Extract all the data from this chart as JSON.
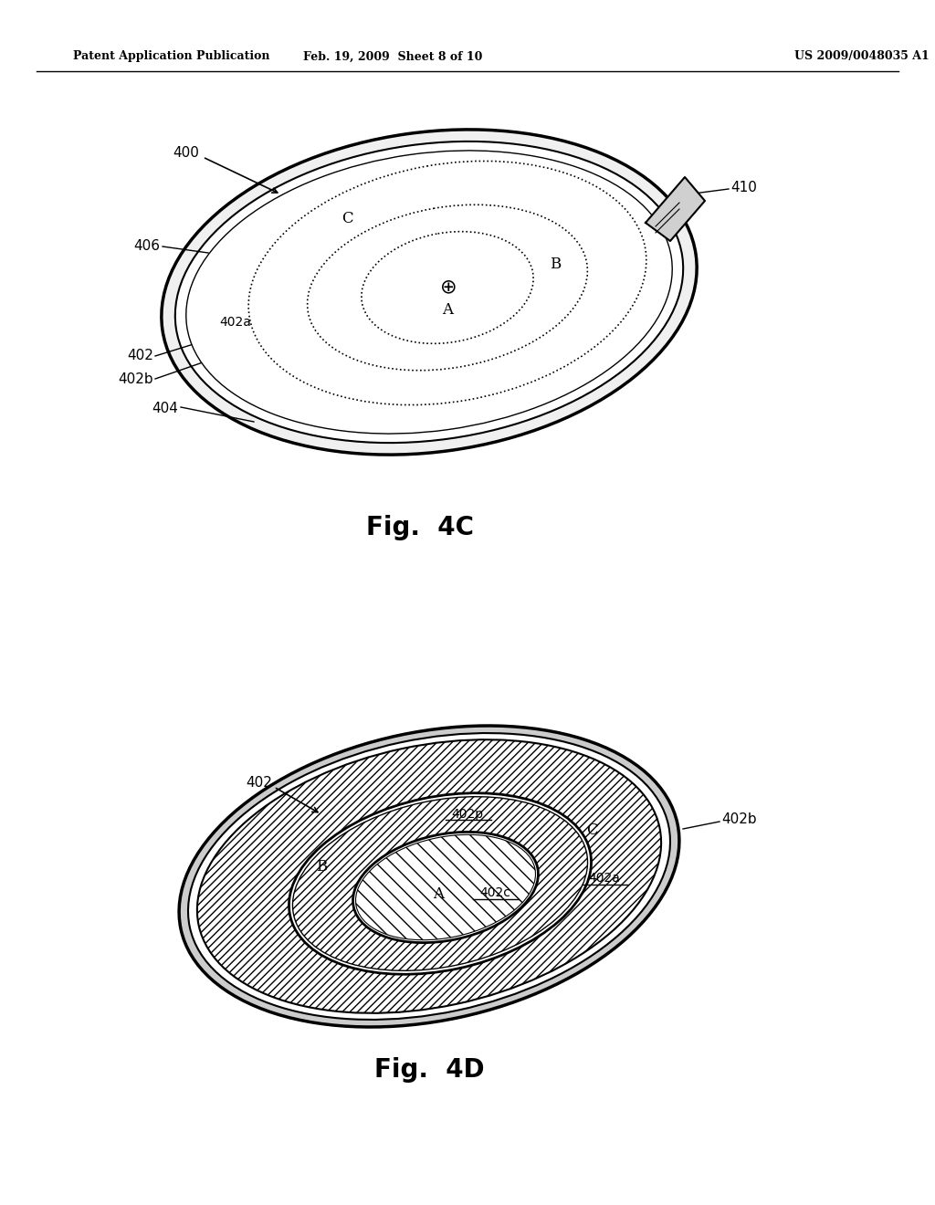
{
  "bg_color": "#ffffff",
  "header_left": "Patent Application Publication",
  "header_center": "Feb. 19, 2009  Sheet 8 of 10",
  "header_right": "US 2009/0048035 A1",
  "fig4c_title": "Fig.  4C",
  "fig4d_title": "Fig.  4D",
  "line_color": "#000000"
}
